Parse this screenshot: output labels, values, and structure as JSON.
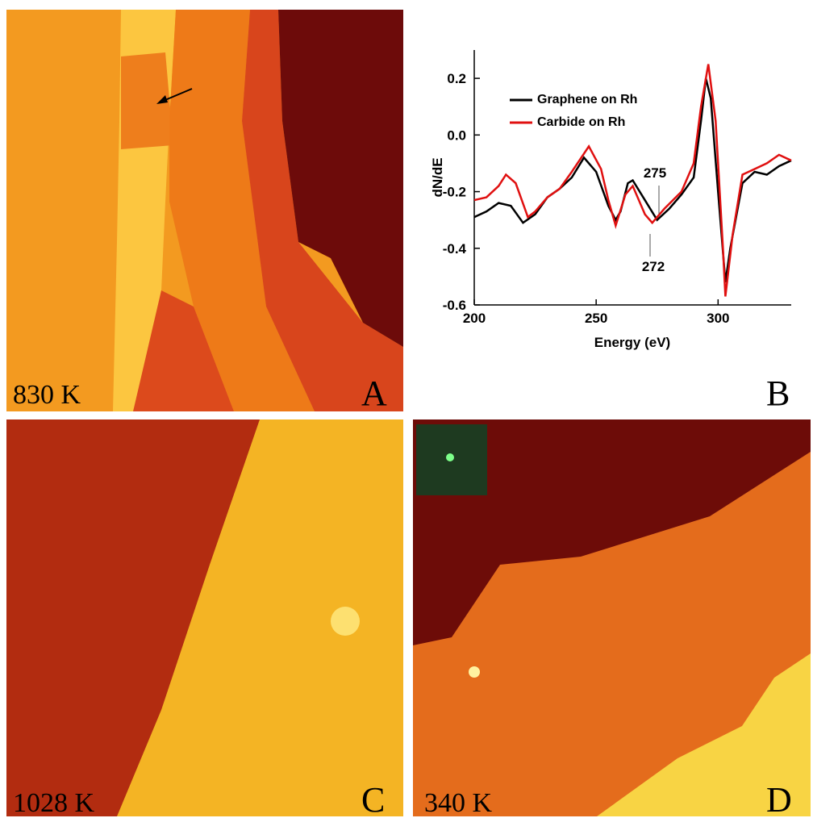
{
  "panels": {
    "a": {
      "temperature": "830 K",
      "letter": "A"
    },
    "b": {
      "letter": "B"
    },
    "c": {
      "temperature": "1028 K",
      "letter": "C"
    },
    "d": {
      "temperature": "340 K",
      "letter": "D"
    }
  },
  "chart_data": {
    "type": "line",
    "xlabel": "Energy (eV)",
    "ylabel": "dN/dE",
    "xlim": [
      200,
      330
    ],
    "ylim": [
      -0.6,
      0.3
    ],
    "xticks": [
      200,
      250,
      300
    ],
    "yticks": [
      -0.6,
      -0.4,
      -0.2,
      {
        "value": 0,
        "label": "0.0"
      },
      0.2
    ],
    "annotations": [
      "275",
      "272"
    ],
    "series": [
      {
        "name": "Graphene on Rh",
        "color": "#000000",
        "x": [
          200,
          205,
          210,
          215,
          220,
          225,
          230,
          235,
          240,
          245,
          250,
          255,
          258,
          260,
          263,
          265,
          270,
          275,
          280,
          285,
          290,
          293,
          295,
          297,
          300,
          303,
          305,
          310,
          315,
          320,
          325,
          330
        ],
        "values": [
          -0.29,
          -0.27,
          -0.24,
          -0.25,
          -0.31,
          -0.28,
          -0.22,
          -0.19,
          -0.15,
          -0.08,
          -0.13,
          -0.25,
          -0.3,
          -0.27,
          -0.17,
          -0.16,
          -0.23,
          -0.3,
          -0.26,
          -0.21,
          -0.15,
          0.05,
          0.2,
          0.13,
          -0.2,
          -0.52,
          -0.4,
          -0.17,
          -0.13,
          -0.14,
          -0.11,
          -0.09
        ]
      },
      {
        "name": "Carbide on Rh",
        "color": "#e01010",
        "x": [
          200,
          205,
          210,
          213,
          217,
          222,
          225,
          230,
          235,
          240,
          247,
          252,
          255,
          258,
          262,
          265,
          270,
          273,
          278,
          285,
          290,
          293,
          296,
          299,
          302,
          303,
          306,
          310,
          315,
          320,
          325,
          330
        ],
        "values": [
          -0.23,
          -0.22,
          -0.18,
          -0.14,
          -0.17,
          -0.29,
          -0.27,
          -0.22,
          -0.19,
          -0.13,
          -0.04,
          -0.12,
          -0.23,
          -0.32,
          -0.21,
          -0.18,
          -0.28,
          -0.31,
          -0.26,
          -0.2,
          -0.1,
          0.1,
          0.25,
          0.05,
          -0.4,
          -0.57,
          -0.35,
          -0.14,
          -0.12,
          -0.1,
          -0.07,
          -0.09
        ]
      }
    ]
  }
}
